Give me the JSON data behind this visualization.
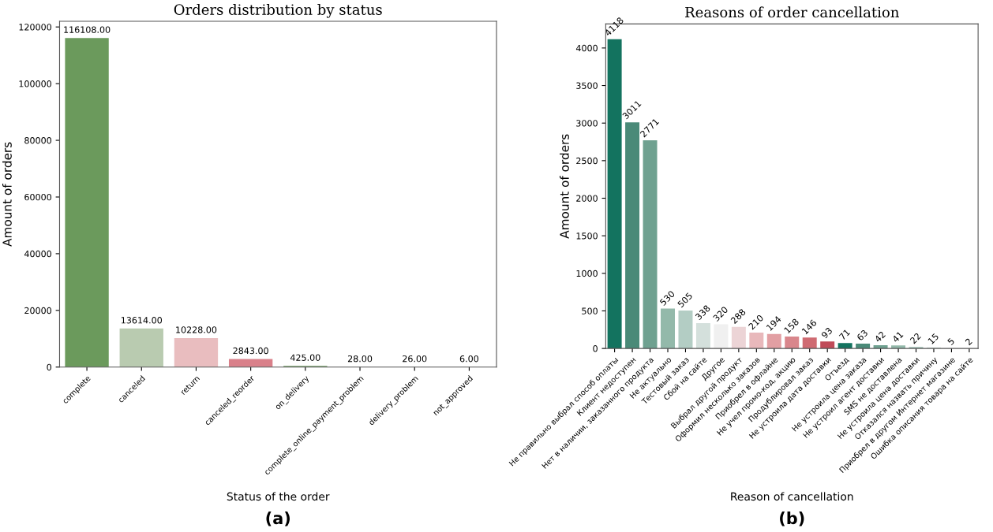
{
  "chart_data": [
    {
      "type": "bar",
      "title": "Orders distribution by status",
      "xlabel": "Status of the order",
      "ylabel": "Amount of orders",
      "categories": [
        "complete",
        "canceled",
        "return",
        "canceled_reorder",
        "on_delivery",
        "complete_online_payment_problem",
        "delivery_problem",
        "not_approved"
      ],
      "values": [
        116108,
        13614,
        10228,
        2843,
        425,
        28,
        26,
        6
      ],
      "value_labels": [
        "116108.00",
        "13614.00",
        "10228.00",
        "2843.00",
        "425.00",
        "28.00",
        "26.00",
        "6.00"
      ],
      "colors": [
        "#6b9a5c",
        "#b9cbb0",
        "#e9bdbf",
        "#d9808a",
        "#6b9a5c",
        "#b9cbb0",
        "#e9bdbf",
        "#d9808a"
      ],
      "ylim": [
        0,
        122000
      ],
      "yticks": [
        0,
        20000,
        40000,
        60000,
        80000,
        100000,
        120000
      ],
      "grid": false,
      "annotations": [
        "(a)"
      ]
    },
    {
      "type": "bar",
      "title": "Reasons of order cancellation",
      "xlabel": "Reason of cancellation",
      "ylabel": "Amount of orders",
      "categories": [
        "Не правильно выбрал способ оплаты",
        "Клиент недоступен",
        "Нет в наличии, заказанного продукта",
        "Не актуально",
        "Тестовый заказ",
        "Сбой на сайте",
        "Другое",
        "Выбрал другой продукт",
        "Оформил несколько заказов",
        "Приобрел в офлайне",
        "Не учел промо-код, акцию",
        "Продублировал заказ",
        "Не устроила дата доставки",
        "Отъезд",
        "Не устроила цена заказа",
        "Не устроил агент доставки",
        "SMS не доставлена",
        "Не устроила цена доставки",
        "Отказался назвать причину",
        "Приобрел в другом Интернет магазине",
        "Ошибка описания товара на сайте"
      ],
      "values": [
        4118,
        3011,
        2771,
        530,
        505,
        338,
        320,
        288,
        210,
        194,
        158,
        146,
        93,
        71,
        63,
        42,
        41,
        22,
        15,
        5,
        2
      ],
      "colors": [
        "#13735f",
        "#4a8a78",
        "#6fa190",
        "#93b9aa",
        "#b3cdc4",
        "#d4e0dc",
        "#f0f0f0",
        "#ecd4d6",
        "#e8b8bb",
        "#e29fa3",
        "#d9868c",
        "#cf6b72",
        "#c04b59",
        "#13735f",
        "#4a8a78",
        "#6fa190",
        "#93b9aa",
        "#b3cdc4",
        "#d4e0dc",
        "#f0f0f0",
        "#ecd4d6"
      ],
      "data_labels": true,
      "ylim": [
        0,
        4320
      ],
      "yticks": [
        0,
        500,
        1000,
        1500,
        2000,
        2500,
        3000,
        3500,
        4000
      ],
      "grid": false,
      "annotations": [
        "(b)"
      ]
    }
  ]
}
